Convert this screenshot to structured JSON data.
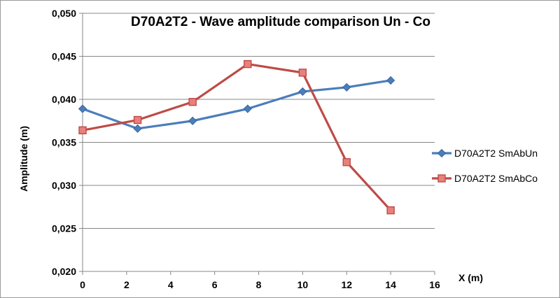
{
  "chart_data": {
    "type": "line",
    "title": "D70A2T2 - Wave amplitude comparison Un - Co",
    "xlabel": "X (m)",
    "ylabel": "Amplitude (m)",
    "xlim": [
      0,
      16
    ],
    "ylim": [
      0.02,
      0.05
    ],
    "x_ticks": [
      "0",
      "2",
      "4",
      "6",
      "8",
      "10",
      "12",
      "14",
      "16"
    ],
    "y_ticks": [
      "0,020",
      "0,025",
      "0,030",
      "0,035",
      "0,040",
      "0,045",
      "0,050"
    ],
    "grid": "horizontal",
    "legend_position": "right",
    "series": [
      {
        "name": "D70A2T2 SmAbUn",
        "color": "#4a7ebb",
        "marker": "diamond",
        "x": [
          0,
          2.5,
          5,
          7.5,
          10,
          12,
          14
        ],
        "values": [
          0.0389,
          0.0366,
          0.0375,
          0.0389,
          0.0409,
          0.0414,
          0.0422
        ]
      },
      {
        "name": "D70A2T2 SmAbCo",
        "color": "#be4b48",
        "marker": "square",
        "x": [
          0,
          2.5,
          5,
          7.5,
          10,
          12,
          14
        ],
        "values": [
          0.0364,
          0.0376,
          0.0397,
          0.0441,
          0.0431,
          0.0327,
          0.0271
        ]
      }
    ]
  }
}
